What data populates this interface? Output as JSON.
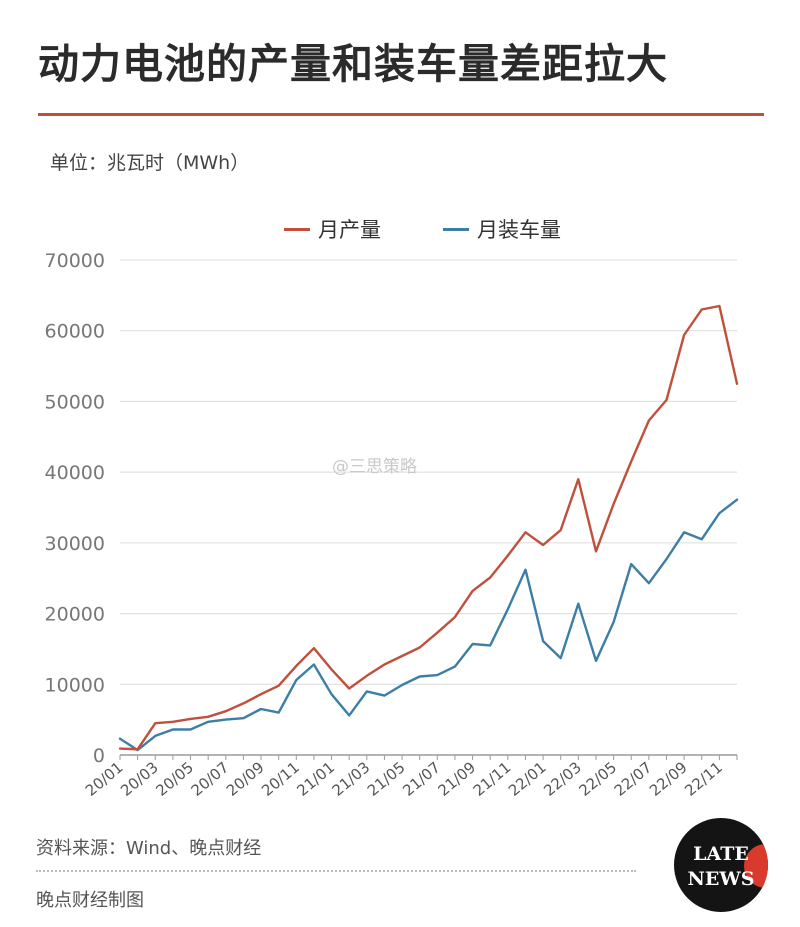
{
  "header": {
    "title": "动力电池的产量和装车量差距拉大",
    "unit": "单位：兆瓦时（MWh）"
  },
  "watermark": "@三思策略",
  "footer": {
    "source": "资料来源：Wind、晚点财经",
    "credit": "晚点财经制图"
  },
  "logo": {
    "line1": "LATE",
    "line2": "NEWS"
  },
  "colors": {
    "production": "#c0503c",
    "installation": "#3d7ea6",
    "title_rule": "#c0503c"
  },
  "chart_data": {
    "type": "line",
    "title": "动力电池的产量和装车量差距拉大",
    "xlabel": "",
    "ylabel": "单位：兆瓦时（MWh）",
    "ylim": [
      0,
      70000
    ],
    "yticks": [
      0,
      10000,
      20000,
      30000,
      40000,
      50000,
      60000,
      70000
    ],
    "ytick_labels": [
      "0",
      "10000",
      "20000",
      "30000",
      "40000",
      "50000",
      "60000",
      "70000"
    ],
    "x": [
      "20/01",
      "20/02",
      "20/03",
      "20/04",
      "20/05",
      "20/06",
      "20/07",
      "20/08",
      "20/09",
      "20/10",
      "20/11",
      "20/12",
      "21/01",
      "21/02",
      "21/03",
      "21/04",
      "21/05",
      "21/06",
      "21/07",
      "21/08",
      "21/09",
      "21/10",
      "21/11",
      "21/12",
      "22/01",
      "22/02",
      "22/03",
      "22/04",
      "22/05",
      "22/06",
      "22/07",
      "22/08",
      "22/09",
      "22/10",
      "22/11",
      "22/12"
    ],
    "xtick_labels": [
      "20/01",
      "20/03",
      "20/05",
      "20/07",
      "20/09",
      "20/11",
      "21/01",
      "21/03",
      "21/05",
      "21/07",
      "21/09",
      "21/11",
      "22/01",
      "22/03",
      "22/05",
      "22/07",
      "22/09",
      "22/11"
    ],
    "grid": true,
    "legend_position": "top-center",
    "series": [
      {
        "name": "月产量",
        "color": "#c0503c",
        "values": [
          900,
          800,
          4500,
          4700,
          5100,
          5400,
          6200,
          7300,
          8600,
          9800,
          12600,
          15100,
          12100,
          9400,
          11200,
          12800,
          14000,
          15200,
          17300,
          19500,
          23200,
          25100,
          28200,
          31500,
          29700,
          31800,
          39000,
          28800,
          35500,
          41500,
          47300,
          50200,
          59400,
          63000,
          63500,
          52500
        ]
      },
      {
        "name": "月装车量",
        "color": "#3d7ea6",
        "values": [
          2300,
          700,
          2700,
          3600,
          3600,
          4700,
          5000,
          5200,
          6500,
          6000,
          10600,
          12800,
          8600,
          5600,
          9000,
          8400,
          9900,
          11100,
          11300,
          12500,
          15700,
          15500,
          20600,
          26200,
          16100,
          13700,
          21400,
          13300,
          18800,
          27000,
          24300,
          27700,
          31500,
          30500,
          34200,
          36100
        ]
      }
    ]
  }
}
